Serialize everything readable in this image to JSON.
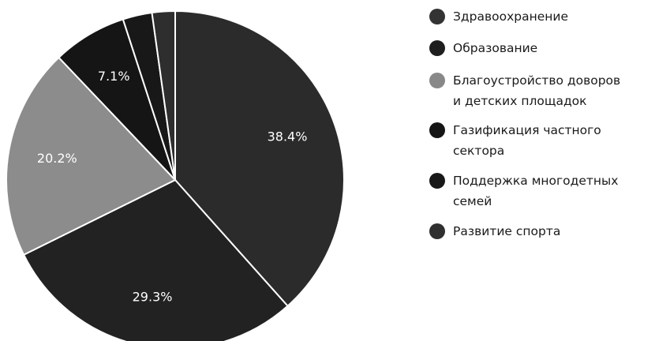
{
  "colors": {
    "slices": [
      "#2b2b2b",
      "#222222",
      "#8c8c8c",
      "#151515",
      "#181818",
      "#2e2e2e"
    ],
    "legend": [
      "#333333",
      "#1e1e1e",
      "#888888",
      "#151515",
      "#181818",
      "#2f2f2f"
    ],
    "label_text": "#ffffff",
    "slice_border": "#ffffff",
    "background": "#ffffff"
  },
  "chart_data": {
    "type": "pie",
    "title": "",
    "start_angle_deg": 0,
    "direction": "clockwise",
    "legend_position": "right",
    "categories": [
      "Здравоохранение",
      "Образование",
      "Благоустройство доворов\nи детских площадок",
      "Газификация частного\nсектора",
      "Поддержка многодетных\nсемей",
      "Развитие спорта"
    ],
    "values": [
      38.4,
      29.3,
      20.2,
      7.1,
      2.8,
      2.2
    ],
    "labels": [
      "38.4%",
      "29.3%",
      "20.2%",
      "7.1%",
      "",
      ""
    ]
  }
}
